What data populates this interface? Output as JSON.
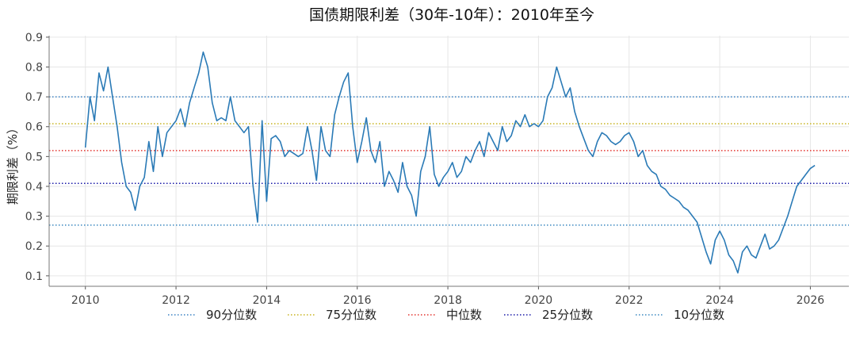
{
  "chart_data": {
    "type": "line",
    "title": "国债期限利差（30年-10年）：2010年至今",
    "xlabel": "",
    "ylabel": "期限利差（%）",
    "xlim": [
      2009.2,
      2026.85
    ],
    "ylim": [
      0.065,
      0.905
    ],
    "xticks": [
      "2010",
      "2012",
      "2014",
      "2016",
      "2018",
      "2020",
      "2022",
      "2024",
      "2026"
    ],
    "yticks": [
      "0.1",
      "0.2",
      "0.3",
      "0.4",
      "0.5",
      "0.6",
      "0.7",
      "0.8",
      "0.9"
    ],
    "grid": true,
    "legend_position": "bottom",
    "series_color": "#2a7ab6",
    "series": [
      {
        "name": "",
        "x": [
          2010.0,
          2010.1,
          2010.2,
          2010.3,
          2010.4,
          2010.5,
          2010.6,
          2010.7,
          2010.8,
          2010.9,
          2011.0,
          2011.1,
          2011.2,
          2011.3,
          2011.4,
          2011.5,
          2011.6,
          2011.7,
          2011.8,
          2011.9,
          2012.0,
          2012.1,
          2012.2,
          2012.3,
          2012.4,
          2012.5,
          2012.6,
          2012.7,
          2012.8,
          2012.9,
          2013.0,
          2013.1,
          2013.2,
          2013.3,
          2013.4,
          2013.5,
          2013.6,
          2013.7,
          2013.8,
          2013.9,
          2014.0,
          2014.1,
          2014.2,
          2014.3,
          2014.4,
          2014.5,
          2014.6,
          2014.7,
          2014.8,
          2014.9,
          2015.0,
          2015.1,
          2015.2,
          2015.3,
          2015.4,
          2015.5,
          2015.6,
          2015.7,
          2015.8,
          2015.9,
          2016.0,
          2016.1,
          2016.2,
          2016.3,
          2016.4,
          2016.5,
          2016.6,
          2016.7,
          2016.8,
          2016.9,
          2017.0,
          2017.1,
          2017.2,
          2017.3,
          2017.4,
          2017.5,
          2017.6,
          2017.7,
          2017.8,
          2017.9,
          2018.0,
          2018.1,
          2018.2,
          2018.3,
          2018.4,
          2018.5,
          2018.6,
          2018.7,
          2018.8,
          2018.9,
          2019.0,
          2019.1,
          2019.2,
          2019.3,
          2019.4,
          2019.5,
          2019.6,
          2019.7,
          2019.8,
          2019.9,
          2020.0,
          2020.1,
          2020.2,
          2020.3,
          2020.4,
          2020.5,
          2020.6,
          2020.7,
          2020.8,
          2020.9,
          2021.0,
          2021.1,
          2021.2,
          2021.3,
          2021.4,
          2021.5,
          2021.6,
          2021.7,
          2021.8,
          2021.9,
          2022.0,
          2022.1,
          2022.2,
          2022.3,
          2022.4,
          2022.5,
          2022.6,
          2022.7,
          2022.8,
          2022.9,
          2023.0,
          2023.1,
          2023.2,
          2023.3,
          2023.4,
          2023.5,
          2023.6,
          2023.7,
          2023.8,
          2023.9,
          2024.0,
          2024.1,
          2024.2,
          2024.3,
          2024.4,
          2024.5,
          2024.6,
          2024.7,
          2024.8,
          2024.9,
          2025.0,
          2025.1,
          2025.2,
          2025.3,
          2025.4,
          2025.5,
          2025.6,
          2025.7,
          2025.8,
          2025.9,
          2026.0,
          2026.1
        ],
        "y": [
          0.53,
          0.7,
          0.62,
          0.78,
          0.72,
          0.8,
          0.7,
          0.6,
          0.48,
          0.4,
          0.38,
          0.32,
          0.4,
          0.43,
          0.55,
          0.45,
          0.6,
          0.5,
          0.58,
          0.6,
          0.62,
          0.66,
          0.6,
          0.68,
          0.73,
          0.78,
          0.85,
          0.8,
          0.68,
          0.62,
          0.63,
          0.62,
          0.7,
          0.62,
          0.6,
          0.58,
          0.6,
          0.4,
          0.28,
          0.62,
          0.35,
          0.56,
          0.57,
          0.55,
          0.5,
          0.52,
          0.51,
          0.5,
          0.51,
          0.6,
          0.52,
          0.42,
          0.6,
          0.52,
          0.5,
          0.64,
          0.7,
          0.75,
          0.78,
          0.6,
          0.48,
          0.55,
          0.63,
          0.52,
          0.48,
          0.55,
          0.4,
          0.45,
          0.42,
          0.38,
          0.48,
          0.4,
          0.37,
          0.3,
          0.45,
          0.5,
          0.6,
          0.44,
          0.4,
          0.43,
          0.45,
          0.48,
          0.43,
          0.45,
          0.5,
          0.48,
          0.52,
          0.55,
          0.5,
          0.58,
          0.55,
          0.52,
          0.6,
          0.55,
          0.57,
          0.62,
          0.6,
          0.64,
          0.6,
          0.61,
          0.6,
          0.62,
          0.7,
          0.73,
          0.8,
          0.75,
          0.7,
          0.73,
          0.65,
          0.6,
          0.56,
          0.52,
          0.5,
          0.55,
          0.58,
          0.57,
          0.55,
          0.54,
          0.55,
          0.57,
          0.58,
          0.55,
          0.5,
          0.52,
          0.47,
          0.45,
          0.44,
          0.4,
          0.39,
          0.37,
          0.36,
          0.35,
          0.33,
          0.32,
          0.3,
          0.28,
          0.23,
          0.18,
          0.14,
          0.22,
          0.25,
          0.22,
          0.17,
          0.15,
          0.11,
          0.18,
          0.2,
          0.17,
          0.16,
          0.2,
          0.24,
          0.19,
          0.2,
          0.22,
          0.26,
          0.3,
          0.35,
          0.4,
          0.42,
          0.44,
          0.46,
          0.47
        ]
      }
    ],
    "reference_lines": [
      {
        "name": "90分位数",
        "value": 0.7,
        "color": "#3a82c4"
      },
      {
        "name": "75分位数",
        "value": 0.61,
        "color": "#c8b41e"
      },
      {
        "name": "中位数",
        "value": 0.52,
        "color": "#e3342f"
      },
      {
        "name": "25分位数",
        "value": 0.41,
        "color": "#1a1aa8"
      },
      {
        "name": "10分位数",
        "value": 0.27,
        "color": "#3a88c0"
      }
    ]
  }
}
